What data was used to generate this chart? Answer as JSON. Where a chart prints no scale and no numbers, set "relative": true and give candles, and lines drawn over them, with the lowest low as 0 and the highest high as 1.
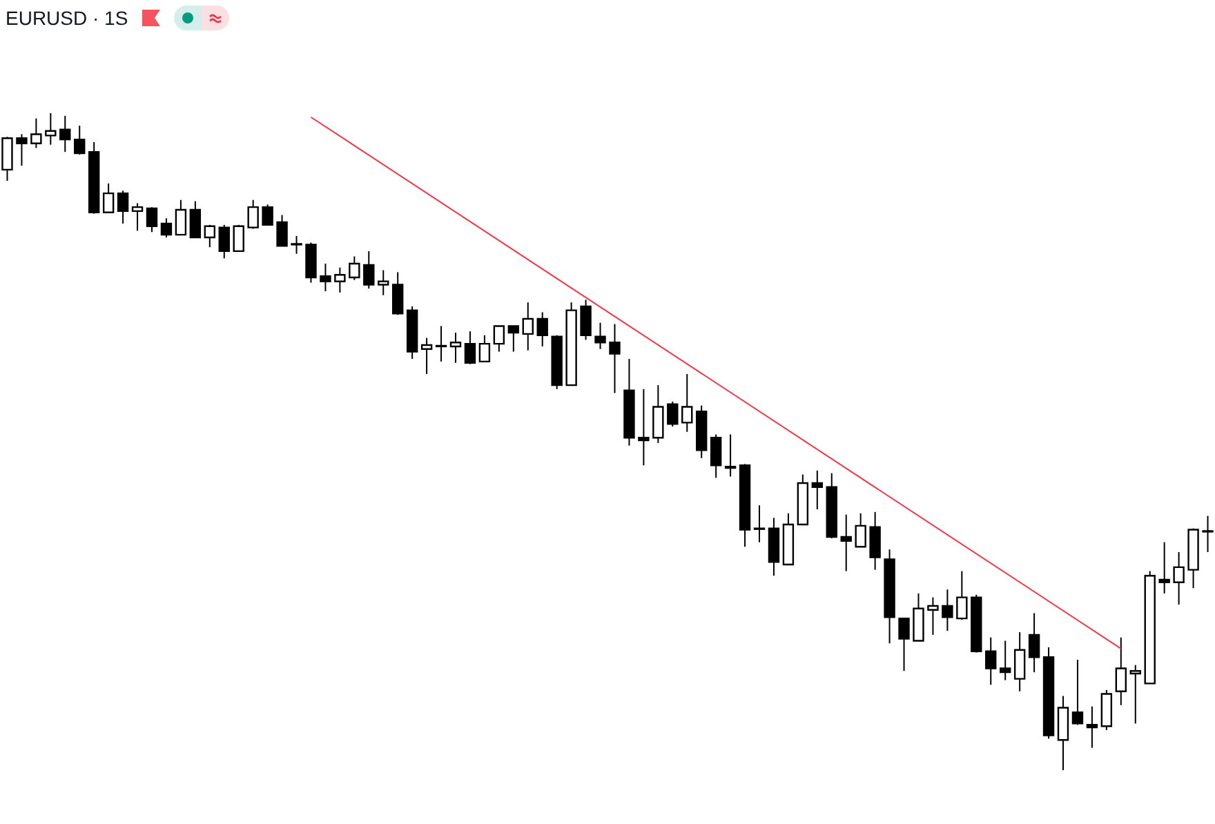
{
  "chart_data": {
    "type": "candlestick",
    "title": "EURUSD · 1S",
    "relative": true,
    "categories": [
      null,
      null,
      null,
      null,
      null,
      null,
      null,
      null,
      null,
      null,
      null,
      null,
      null,
      null,
      null,
      null,
      null,
      null,
      null,
      null,
      null,
      null,
      null,
      null,
      null,
      null,
      null,
      null,
      null,
      null,
      null,
      null,
      null,
      null,
      null,
      null,
      null,
      null,
      null,
      null,
      null,
      null,
      null,
      null,
      null,
      null,
      null,
      null,
      null,
      null,
      null,
      null,
      null,
      null,
      null,
      null,
      null,
      null,
      null,
      null,
      null,
      null,
      null,
      null,
      null,
      null,
      null,
      null,
      null,
      null,
      null,
      null,
      null,
      null,
      null,
      null,
      null,
      null,
      null,
      null,
      null,
      null,
      null,
      null
    ],
    "ohlc": [
      [
        0.914,
        0.964,
        0.897,
        0.962
      ],
      [
        0.962,
        0.968,
        0.92,
        0.954
      ],
      [
        0.954,
        0.992,
        0.947,
        0.968
      ],
      [
        0.966,
        1,
        0.952,
        0.973
      ],
      [
        0.975,
        0.996,
        0.941,
        0.96
      ],
      [
        0.96,
        0.981,
        0.937,
        0.939
      ],
      [
        0.941,
        0.956,
        0.847,
        0.849
      ],
      [
        0.849,
        0.893,
        0.849,
        0.878
      ],
      [
        0.878,
        0.882,
        0.832,
        0.851
      ],
      [
        0.851,
        0.863,
        0.821,
        0.857
      ],
      [
        0.855,
        0.857,
        0.819,
        0.828
      ],
      [
        0.832,
        0.84,
        0.811,
        0.815
      ],
      [
        0.815,
        0.868,
        0.815,
        0.853
      ],
      [
        0.853,
        0.866,
        0.811,
        0.811
      ],
      [
        0.811,
        0.83,
        0.796,
        0.828
      ],
      [
        0.826,
        0.83,
        0.779,
        0.79
      ],
      [
        0.79,
        0.83,
        0.79,
        0.828
      ],
      [
        0.826,
        0.868,
        0.824,
        0.857
      ],
      [
        0.857,
        0.861,
        0.83,
        0.83
      ],
      [
        0.834,
        0.845,
        0.798,
        0.798
      ],
      [
        0.801,
        0.813,
        0.786,
        0.8
      ],
      [
        0.8,
        0.803,
        0.742,
        0.75
      ],
      [
        0.752,
        0.771,
        0.729,
        0.744
      ],
      [
        0.744,
        0.765,
        0.727,
        0.754
      ],
      [
        0.75,
        0.782,
        0.746,
        0.771
      ],
      [
        0.769,
        0.79,
        0.733,
        0.739
      ],
      [
        0.739,
        0.761,
        0.723,
        0.744
      ],
      [
        0.739,
        0.758,
        0.693,
        0.695
      ],
      [
        0.7,
        0.706,
        0.626,
        0.637
      ],
      [
        0.641,
        0.658,
        0.603,
        0.647
      ],
      [
        0.646,
        0.676,
        0.622,
        0.645
      ],
      [
        0.645,
        0.666,
        0.62,
        0.651
      ],
      [
        0.649,
        0.668,
        0.618,
        0.62
      ],
      [
        0.622,
        0.662,
        0.622,
        0.649
      ],
      [
        0.649,
        0.676,
        0.637,
        0.676
      ],
      [
        0.676,
        0.676,
        0.637,
        0.666
      ],
      [
        0.664,
        0.712,
        0.639,
        0.687
      ],
      [
        0.687,
        0.697,
        0.645,
        0.662
      ],
      [
        0.66,
        0.662,
        0.58,
        0.586
      ],
      [
        0.586,
        0.712,
        0.586,
        0.7
      ],
      [
        0.706,
        0.716,
        0.655,
        0.662
      ],
      [
        0.66,
        0.681,
        0.641,
        0.651
      ],
      [
        0.651,
        0.679,
        0.574,
        0.634
      ],
      [
        0.578,
        0.626,
        0.494,
        0.506
      ],
      [
        0.506,
        0.58,
        0.464,
        0.502
      ],
      [
        0.506,
        0.586,
        0.498,
        0.553
      ],
      [
        0.557,
        0.561,
        0.523,
        0.527
      ],
      [
        0.529,
        0.603,
        0.515,
        0.553
      ],
      [
        0.546,
        0.555,
        0.475,
        0.487
      ],
      [
        0.506,
        0.511,
        0.445,
        0.464
      ],
      [
        0.462,
        0.511,
        0.447,
        0.46
      ],
      [
        0.464,
        0.466,
        0.34,
        0.366
      ],
      [
        0.368,
        0.403,
        0.347,
        0.367
      ],
      [
        0.368,
        0.384,
        0.296,
        0.317
      ],
      [
        0.313,
        0.391,
        0.313,
        0.374
      ],
      [
        0.374,
        0.45,
        0.374,
        0.437
      ],
      [
        0.437,
        0.456,
        0.397,
        0.431
      ],
      [
        0.431,
        0.452,
        0.353,
        0.355
      ],
      [
        0.355,
        0.389,
        0.303,
        0.349
      ],
      [
        0.34,
        0.391,
        0.34,
        0.372
      ],
      [
        0.37,
        0.393,
        0.305,
        0.324
      ],
      [
        0.321,
        0.336,
        0.193,
        0.233
      ],
      [
        0.231,
        0.231,
        0.151,
        0.2
      ],
      [
        0.197,
        0.269,
        0.197,
        0.246
      ],
      [
        0.244,
        0.263,
        0.206,
        0.25
      ],
      [
        0.25,
        0.275,
        0.212,
        0.233
      ],
      [
        0.231,
        0.303,
        0.229,
        0.263
      ],
      [
        0.263,
        0.267,
        0.179,
        0.181
      ],
      [
        0.181,
        0.202,
        0.13,
        0.155
      ],
      [
        0.155,
        0.197,
        0.137,
        0.149
      ],
      [
        0.139,
        0.21,
        0.12,
        0.183
      ],
      [
        0.206,
        0.239,
        0.149,
        0.172
      ],
      [
        0.172,
        0.187,
        0.048,
        0.053
      ],
      [
        0.046,
        0.113,
        0,
        0.095
      ],
      [
        0.088,
        0.168,
        0.069,
        0.071
      ],
      [
        0.069,
        0.097,
        0.034,
        0.065
      ],
      [
        0.067,
        0.122,
        0.061,
        0.116
      ],
      [
        0.12,
        0.202,
        0.099,
        0.155
      ],
      [
        0.147,
        0.16,
        0.071,
        0.151
      ],
      [
        0.132,
        0.303,
        0.132,
        0.296
      ],
      [
        0.29,
        0.347,
        0.269,
        0.286
      ],
      [
        0.286,
        0.332,
        0.252,
        0.309
      ],
      [
        0.305,
        0.368,
        0.277,
        0.366
      ],
      [
        0.363,
        0.387,
        0.332,
        0.364
      ]
    ],
    "series": [
      {
        "type": "line",
        "color": "#f23645",
        "values": [
          null,
          null,
          null,
          null,
          null,
          null,
          null,
          null,
          null,
          null,
          null,
          null,
          null,
          null,
          null,
          null,
          null,
          null,
          null,
          null,
          null,
          0.994,
          null,
          null,
          null,
          null,
          null,
          null,
          null,
          null,
          null,
          null,
          null,
          null,
          null,
          null,
          null,
          null,
          null,
          null,
          null,
          null,
          null,
          null,
          null,
          null,
          null,
          null,
          null,
          null,
          null,
          null,
          null,
          null,
          null,
          null,
          null,
          null,
          null,
          null,
          null,
          null,
          null,
          null,
          null,
          null,
          null,
          null,
          null,
          null,
          null,
          null,
          null,
          null,
          null,
          null,
          null,
          0.185,
          null,
          null,
          null,
          null,
          null,
          null
        ]
      }
    ]
  }
}
